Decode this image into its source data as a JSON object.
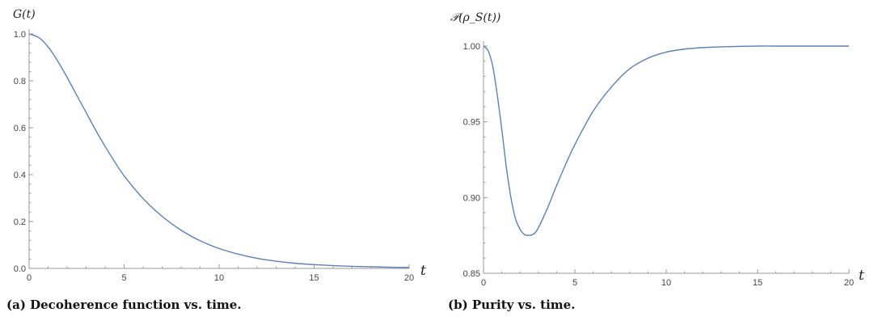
{
  "chart_data": [
    {
      "type": "line",
      "ylabel": "G(t)",
      "xlabel": "t",
      "caption": "(a) Decoherence function vs. time.",
      "xlim": [
        0,
        20
      ],
      "ylim": [
        0,
        1
      ],
      "x_ticks": [
        0,
        5,
        10,
        15,
        20
      ],
      "x_tick_labels": [
        "0",
        "5",
        "10",
        "15",
        "20"
      ],
      "y_ticks": [
        0,
        0.2,
        0.4,
        0.6,
        0.8,
        1.0
      ],
      "y_tick_labels": [
        "0.0",
        "0.2",
        "0.4",
        "0.6",
        "0.8",
        "1.0"
      ],
      "grid": false,
      "color": "#5e81b5",
      "series": [
        {
          "x": [
            0,
            0.5,
            1,
            1.5,
            2,
            2.5,
            3,
            3.5,
            4,
            4.5,
            5,
            6,
            7,
            8,
            9,
            10,
            11,
            12,
            13,
            14,
            15,
            16,
            17,
            18,
            19,
            20
          ],
          "values": [
            1.0,
            0.985,
            0.945,
            0.885,
            0.815,
            0.74,
            0.665,
            0.59,
            0.52,
            0.455,
            0.395,
            0.298,
            0.222,
            0.163,
            0.118,
            0.085,
            0.061,
            0.043,
            0.031,
            0.022,
            0.016,
            0.012,
            0.009,
            0.007,
            0.005,
            0.004
          ]
        }
      ]
    },
    {
      "type": "line",
      "ylabel": "𝒫(ρ_S(t))",
      "xlabel": "t",
      "caption": "(b) Purity vs. time.",
      "xlim": [
        0,
        20
      ],
      "ylim": [
        0.85,
        1.0
      ],
      "x_ticks": [
        0,
        5,
        10,
        15,
        20
      ],
      "x_tick_labels": [
        "0",
        "5",
        "10",
        "15",
        "20"
      ],
      "y_ticks": [
        0.85,
        0.9,
        0.95,
        1.0
      ],
      "y_tick_labels": [
        "0.85",
        "0.90",
        "0.95",
        "1.00"
      ],
      "grid": false,
      "color": "#5e81b5",
      "series": [
        {
          "x": [
            0,
            0.25,
            0.5,
            0.75,
            1,
            1.25,
            1.5,
            1.75,
            2,
            2.25,
            2.5,
            2.75,
            3,
            3.5,
            4,
            4.5,
            5,
            6,
            7,
            8,
            9,
            10,
            11,
            12,
            13,
            14,
            15,
            16,
            17,
            18,
            19,
            20
          ],
          "values": [
            1.0,
            0.997,
            0.987,
            0.968,
            0.945,
            0.92,
            0.9,
            0.886,
            0.879,
            0.8755,
            0.875,
            0.876,
            0.88,
            0.893,
            0.908,
            0.922,
            0.935,
            0.957,
            0.973,
            0.985,
            0.992,
            0.996,
            0.998,
            0.999,
            0.9995,
            0.9998,
            1.0,
            1.0,
            1.0,
            1.0,
            1.0,
            1.0
          ]
        }
      ]
    }
  ]
}
